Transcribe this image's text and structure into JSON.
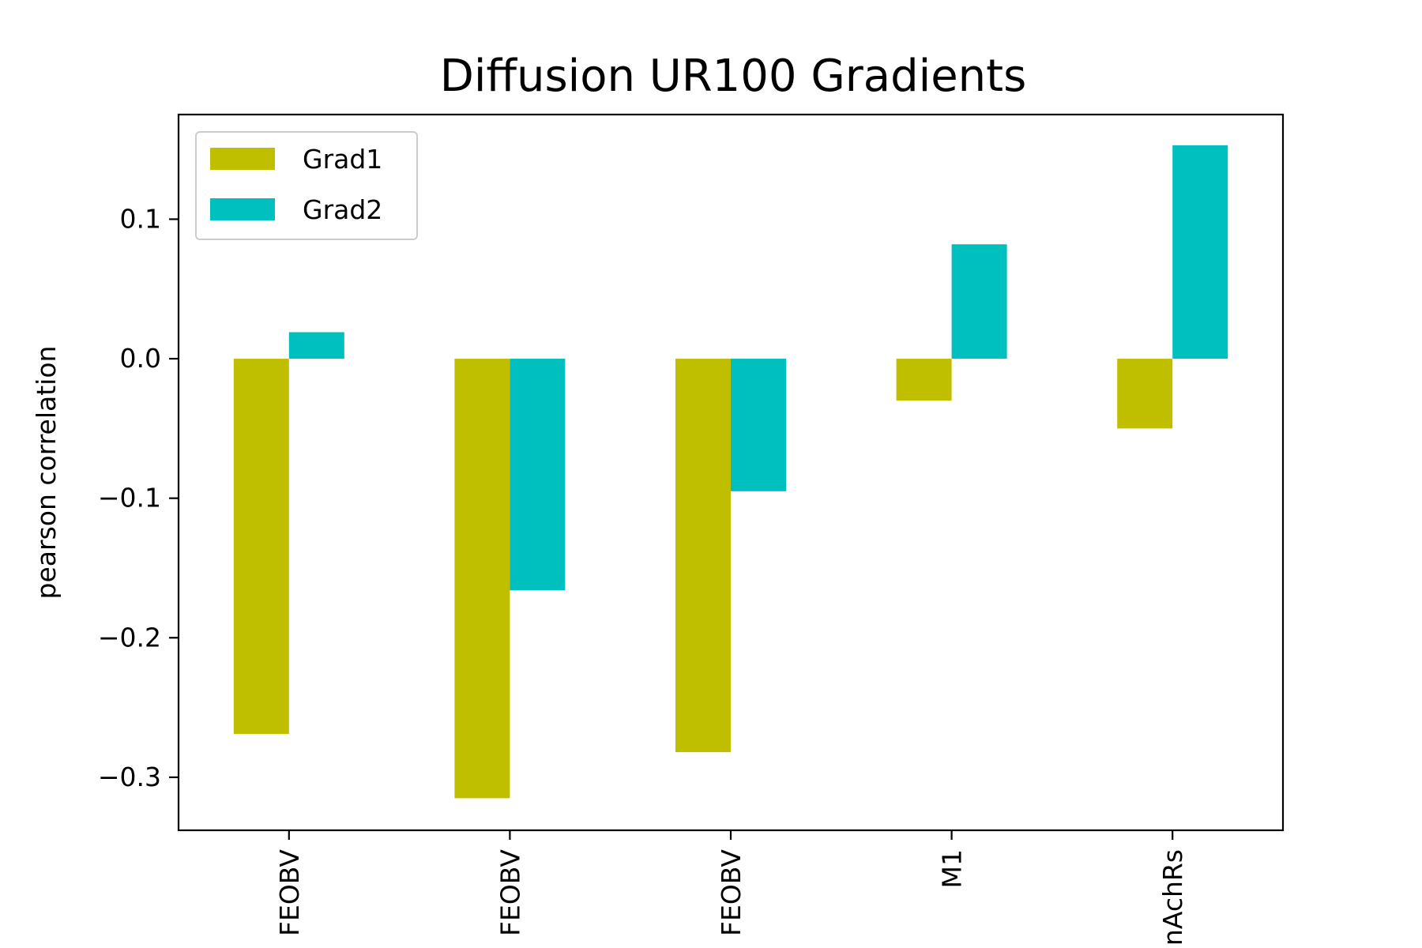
{
  "chart_data": {
    "type": "bar",
    "title": "Diffusion UR100 Gradients",
    "xlabel": "",
    "ylabel": "pearson correlation",
    "categories": [
      "FEOBV",
      "FEOBV",
      "FEOBV",
      "M1",
      "nAchRs"
    ],
    "series": [
      {
        "name": "Grad1",
        "color": "#bfbf00",
        "values": [
          -0.269,
          -0.315,
          -0.282,
          -0.03,
          -0.05
        ]
      },
      {
        "name": "Grad2",
        "color": "#00bfbf",
        "values": [
          0.019,
          -0.166,
          -0.095,
          0.082,
          0.153
        ]
      }
    ],
    "ylim": [
      -0.338,
      0.175
    ],
    "yticks": [
      0.1,
      0.0,
      -0.1,
      -0.2,
      -0.3
    ],
    "yticklabels": [
      "0.1",
      "0.0",
      "−0.1",
      "−0.2",
      "−0.3"
    ],
    "grid": false,
    "legend_position": "upper-left"
  }
}
